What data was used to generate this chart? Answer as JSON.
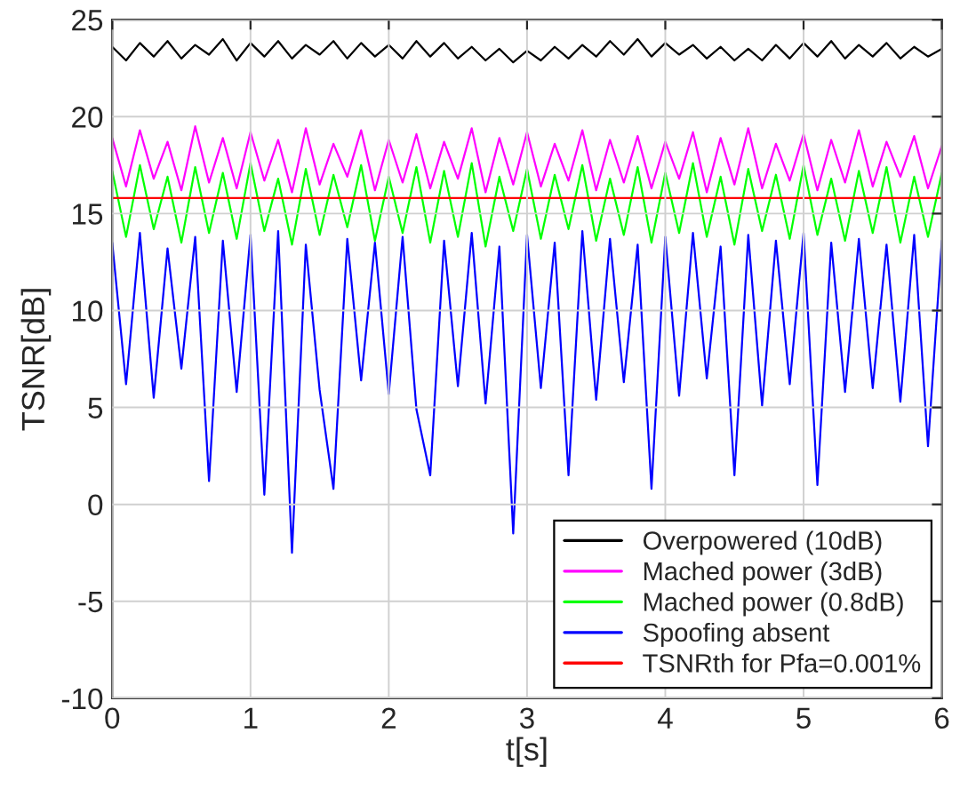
{
  "chart_data": {
    "type": "line",
    "xlabel": "t[s]",
    "ylabel": "TSNR[dB]",
    "x": [
      0,
      0.1,
      0.2,
      0.3,
      0.4,
      0.5,
      0.6,
      0.7,
      0.8,
      0.9,
      1,
      1.1,
      1.2,
      1.3,
      1.4,
      1.5,
      1.6,
      1.7,
      1.8,
      1.9,
      2,
      2.1,
      2.2,
      2.3,
      2.4,
      2.5,
      2.6,
      2.7,
      2.8,
      2.9,
      3,
      3.1,
      3.2,
      3.3,
      3.4,
      3.5,
      3.6,
      3.7,
      3.8,
      3.9,
      4,
      4.1,
      4.2,
      4.3,
      4.4,
      4.5,
      4.6,
      4.7,
      4.8,
      4.9,
      5,
      5.1,
      5.2,
      5.3,
      5.4,
      5.5,
      5.6,
      5.7,
      5.8,
      5.9,
      6
    ],
    "series": [
      {
        "name": "Overpowered (10dB)",
        "color": "#000000",
        "values": [
          23.6,
          22.9,
          23.8,
          23.1,
          23.9,
          23.0,
          23.7,
          23.2,
          24.0,
          22.9,
          23.8,
          23.1,
          23.9,
          23.0,
          23.7,
          23.2,
          23.9,
          23.0,
          23.8,
          23.1,
          23.7,
          23.0,
          23.9,
          23.1,
          23.8,
          23.0,
          23.6,
          22.9,
          23.5,
          22.8,
          23.4,
          22.9,
          23.6,
          23.0,
          23.7,
          23.1,
          23.9,
          23.2,
          24.0,
          23.1,
          23.8,
          23.2,
          23.7,
          23.0,
          23.6,
          22.9,
          23.5,
          22.9,
          23.7,
          23.0,
          23.8,
          23.1,
          23.9,
          23.0,
          23.7,
          23.1,
          23.8,
          23.0,
          23.6,
          23.1,
          23.5
        ]
      },
      {
        "name": "Mached power (3dB)",
        "color": "#ff00ff",
        "values": [
          18.9,
          16.4,
          19.3,
          16.8,
          18.7,
          16.2,
          19.5,
          16.6,
          18.9,
          16.3,
          19.2,
          16.7,
          18.8,
          16.1,
          19.4,
          16.5,
          18.6,
          16.9,
          19.3,
          16.2,
          18.8,
          16.6,
          19.1,
          16.3,
          18.7,
          16.8,
          19.4,
          16.1,
          18.9,
          16.5,
          19.2,
          16.4,
          18.6,
          16.7,
          19.3,
          16.2,
          18.8,
          16.6,
          19.0,
          16.3,
          18.7,
          16.8,
          19.2,
          16.1,
          18.9,
          16.5,
          19.4,
          16.3,
          18.6,
          16.7,
          19.1,
          16.2,
          18.8,
          16.6,
          19.3,
          16.4,
          18.7,
          16.9,
          19.0,
          16.3,
          18.5
        ]
      },
      {
        "name": "Mached power (0.8dB)",
        "color": "#00ff00",
        "values": [
          17.2,
          13.8,
          17.5,
          14.2,
          16.9,
          13.5,
          17.4,
          14.0,
          17.1,
          13.7,
          17.6,
          14.1,
          16.8,
          13.4,
          17.3,
          13.9,
          17.0,
          14.3,
          17.5,
          13.6,
          16.9,
          14.0,
          17.4,
          13.5,
          17.2,
          13.8,
          17.6,
          13.3,
          16.9,
          14.1,
          17.3,
          13.7,
          17.0,
          14.2,
          17.5,
          13.6,
          16.8,
          13.9,
          17.4,
          13.5,
          17.1,
          14.0,
          17.6,
          13.8,
          16.9,
          13.4,
          17.3,
          14.1,
          17.0,
          13.7,
          17.5,
          13.9,
          16.8,
          13.6,
          17.2,
          14.0,
          17.4,
          13.5,
          16.9,
          13.8,
          17.1
        ]
      },
      {
        "name": "Spoofing absent",
        "color": "#0000ff",
        "values": [
          13.5,
          6.2,
          14.0,
          5.5,
          13.2,
          7.0,
          13.8,
          1.2,
          13.6,
          5.8,
          13.9,
          0.5,
          14.1,
          -2.5,
          13.4,
          5.9,
          0.8,
          13.7,
          6.4,
          13.5,
          5.7,
          13.8,
          4.9,
          1.5,
          13.6,
          6.1,
          14.0,
          5.2,
          13.3,
          -1.5,
          13.9,
          6.0,
          13.5,
          1.5,
          14.1,
          5.4,
          13.7,
          6.3,
          13.4,
          0.8,
          13.8,
          5.6,
          14.0,
          6.5,
          13.3,
          1.5,
          13.9,
          5.1,
          13.6,
          6.2,
          14.0,
          1.0,
          13.5,
          5.8,
          13.7,
          6.0,
          13.4,
          5.3,
          13.9,
          3.0,
          13.6
        ]
      },
      {
        "name": "TSNRth for Pfa=0.001%",
        "color": "#ff0000",
        "x": [
          0,
          6
        ],
        "values": [
          15.8,
          15.8
        ]
      }
    ],
    "xlim": [
      0,
      6
    ],
    "xticks": [
      0,
      1,
      2,
      3,
      4,
      5,
      6
    ],
    "ylim": [
      -10,
      25
    ],
    "yticks": [
      -10,
      -5,
      0,
      5,
      10,
      15,
      20,
      25
    ],
    "grid": true,
    "legend": "bottom right",
    "line_style": "solid",
    "marker": "none"
  }
}
